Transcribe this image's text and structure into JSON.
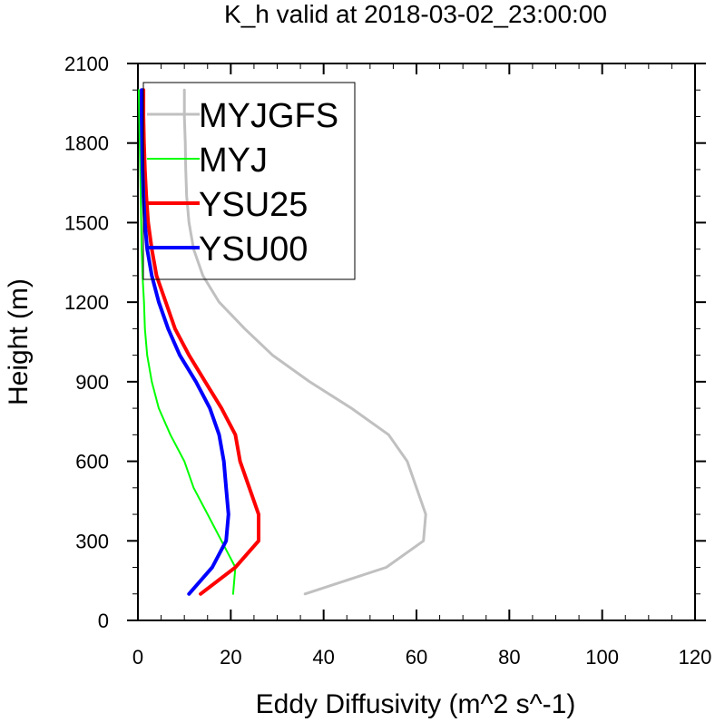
{
  "chart_data": {
    "type": "line",
    "title": "K_h valid at 2018-03-02_23:00:00",
    "xlabel": "Eddy Diffusivity (m^2 s^-1)",
    "ylabel": "Height (m)",
    "xlim": [
      0,
      120
    ],
    "ylim": [
      0,
      2100
    ],
    "xticks": [
      "0",
      "20",
      "40",
      "60",
      "80",
      "100",
      "120"
    ],
    "yticks": [
      "0",
      "300",
      "600",
      "900",
      "1200",
      "1500",
      "1800",
      "2100"
    ],
    "legend_position": "top-left",
    "series": [
      {
        "name": "MYJGFS",
        "color": "#c0c0c0",
        "width": 3,
        "points": [
          [
            36,
            100
          ],
          [
            53.5,
            200
          ],
          [
            61.5,
            300
          ],
          [
            62,
            400
          ],
          [
            60,
            500
          ],
          [
            58,
            600
          ],
          [
            54,
            700
          ],
          [
            46,
            800
          ],
          [
            37,
            900
          ],
          [
            29,
            1000
          ],
          [
            23,
            1100
          ],
          [
            17.5,
            1200
          ],
          [
            14,
            1300
          ],
          [
            12,
            1400
          ],
          [
            11,
            1500
          ],
          [
            10.5,
            1600
          ],
          [
            10.3,
            1700
          ],
          [
            10.2,
            1800
          ],
          [
            10,
            1900
          ],
          [
            10,
            2000
          ]
        ]
      },
      {
        "name": "MYJ",
        "color": "#00ff00",
        "width": 2,
        "points": [
          [
            20.5,
            100
          ],
          [
            21,
            200
          ],
          [
            18,
            300
          ],
          [
            15,
            400
          ],
          [
            12,
            500
          ],
          [
            10,
            600
          ],
          [
            7,
            700
          ],
          [
            4.5,
            800
          ],
          [
            3,
            900
          ],
          [
            2,
            1000
          ],
          [
            1.5,
            1100
          ],
          [
            1.3,
            1200
          ],
          [
            1,
            1300
          ],
          [
            0.8,
            1400
          ],
          [
            0.7,
            1500
          ],
          [
            0.6,
            1600
          ],
          [
            0.5,
            1700
          ],
          [
            0.4,
            1800
          ],
          [
            0.3,
            1900
          ],
          [
            0.2,
            2000
          ]
        ]
      },
      {
        "name": "YSU25",
        "color": "#ff0000",
        "width": 4,
        "points": [
          [
            13.5,
            100
          ],
          [
            21,
            200
          ],
          [
            26,
            300
          ],
          [
            26,
            400
          ],
          [
            24,
            500
          ],
          [
            22,
            600
          ],
          [
            21,
            700
          ],
          [
            18,
            800
          ],
          [
            14.5,
            900
          ],
          [
            11,
            1000
          ],
          [
            8,
            1100
          ],
          [
            6,
            1200
          ],
          [
            4,
            1300
          ],
          [
            3,
            1400
          ],
          [
            2.2,
            1500
          ],
          [
            1.8,
            1600
          ],
          [
            1.5,
            1700
          ],
          [
            1.3,
            1800
          ],
          [
            1.2,
            1900
          ],
          [
            1.2,
            2000
          ]
        ]
      },
      {
        "name": "YSU00",
        "color": "#0000ff",
        "width": 4,
        "points": [
          [
            11,
            100
          ],
          [
            16,
            200
          ],
          [
            19,
            300
          ],
          [
            19.5,
            400
          ],
          [
            19,
            500
          ],
          [
            18.5,
            600
          ],
          [
            17.5,
            700
          ],
          [
            15.5,
            800
          ],
          [
            12.5,
            900
          ],
          [
            9,
            1000
          ],
          [
            6.5,
            1100
          ],
          [
            4.5,
            1200
          ],
          [
            3,
            1300
          ],
          [
            2,
            1400
          ],
          [
            1.5,
            1500
          ],
          [
            1.2,
            1600
          ],
          [
            1,
            1700
          ],
          [
            0.9,
            1800
          ],
          [
            0.8,
            1900
          ],
          [
            0.8,
            2000
          ]
        ]
      }
    ]
  }
}
